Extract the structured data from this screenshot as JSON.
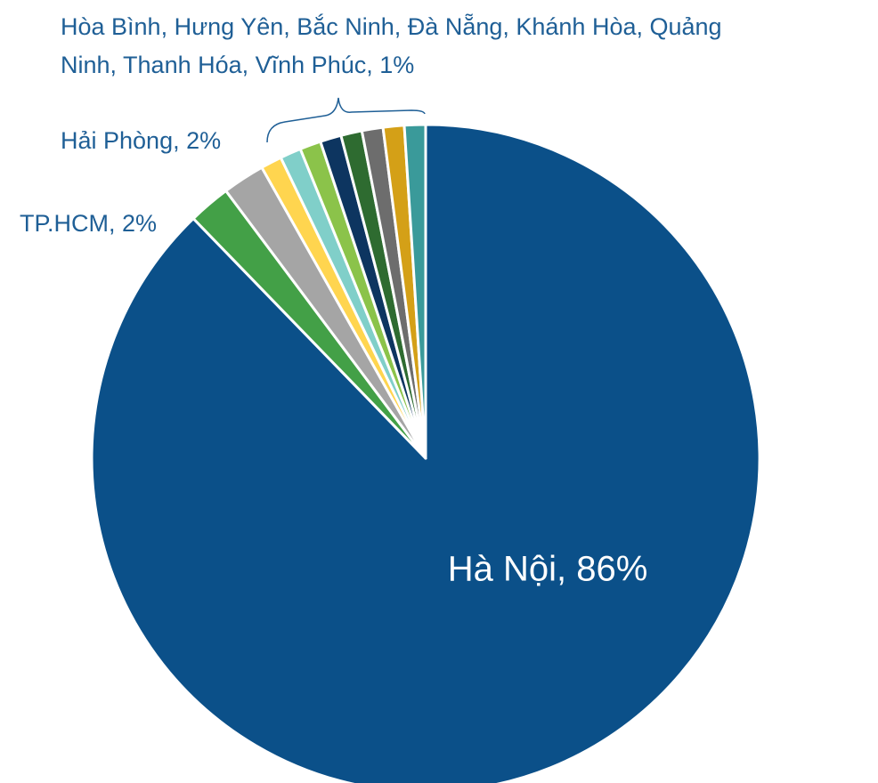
{
  "chart_data": {
    "type": "pie",
    "values": [
      86,
      2,
      2,
      1,
      1,
      1,
      1,
      1,
      1,
      1,
      1
    ],
    "colors": [
      "#0b5089",
      "#43a047",
      "#a5a5a5",
      "#ffd54f",
      "#80cfc9",
      "#8bc34a",
      "#0d3560",
      "#2e6b30",
      "#6d6d6d",
      "#d4a017",
      "#3a9a9a"
    ],
    "value_labels": [
      "Hà Nội, 86%",
      "TP.HCM, 2%",
      "Hải Phòng, 2%",
      null,
      null,
      null,
      null,
      null,
      null,
      null,
      null
    ],
    "group_label": [
      "Hòa Bình, Hưng Yên, Bắc Ninh, Đà Nẵng, Khánh Hòa, Quảng",
      "Ninh, Thanh Hóa, Vĩnh Phúc, 1%"
    ]
  }
}
